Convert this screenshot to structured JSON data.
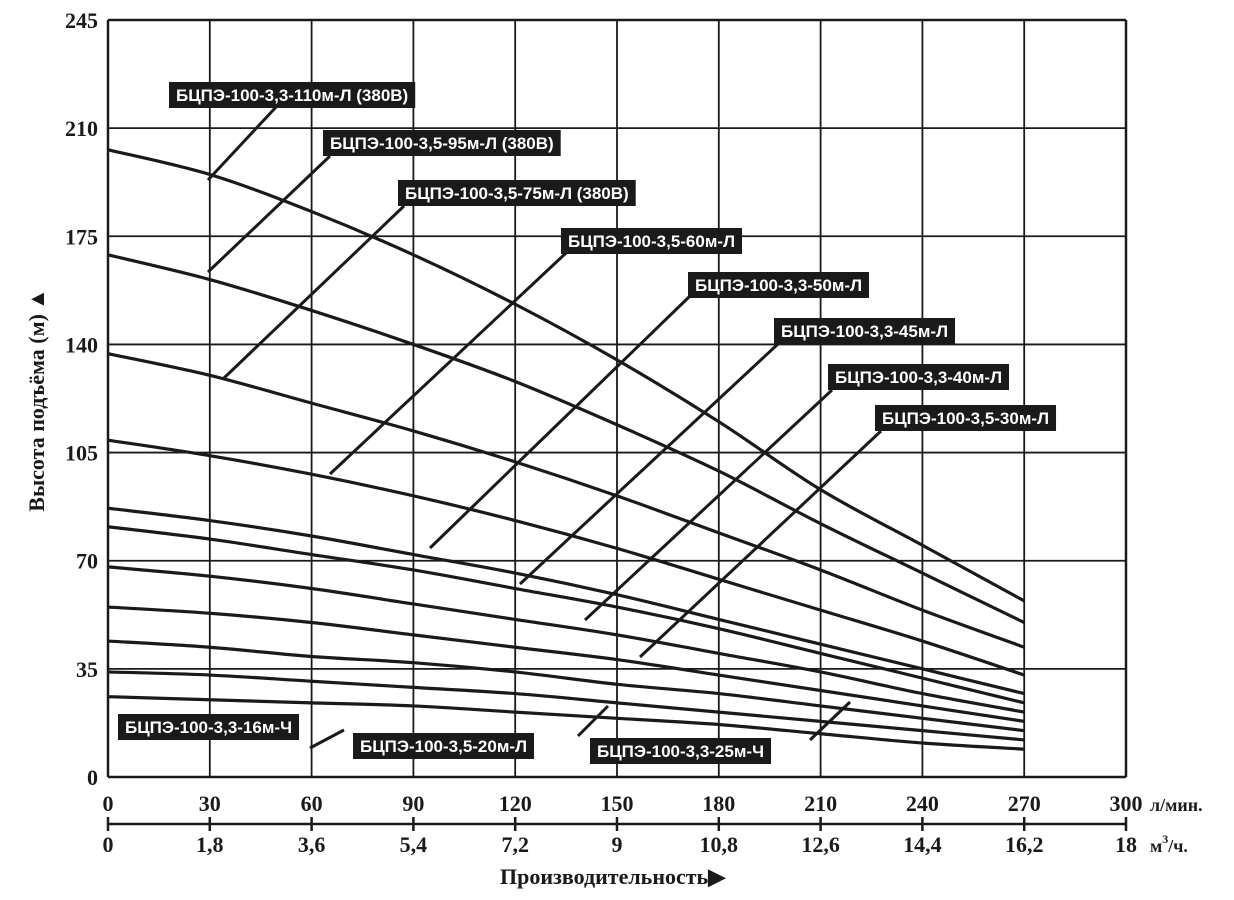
{
  "chart_data": {
    "type": "line",
    "title": "",
    "ylabel": "Высота подъёма (м)",
    "xlabel": "Производительность",
    "x_unit_primary": "л/мин.",
    "x_unit_secondary_base": "м",
    "x_unit_secondary_sup": "3",
    "x_unit_secondary_tail": "/ч.",
    "xlim": [
      0,
      300
    ],
    "ylim": [
      0,
      245
    ],
    "grid": true,
    "x_ticks": [
      "0",
      "30",
      "60",
      "90",
      "120",
      "150",
      "180",
      "210",
      "240",
      "270",
      "300"
    ],
    "x_ticks_secondary": [
      "0",
      "1,8",
      "3,6",
      "5,4",
      "7,2",
      "9",
      "10,8",
      "12,6",
      "14,4",
      "16,2",
      "18"
    ],
    "y_ticks": [
      "0",
      "35",
      "70",
      "105",
      "140",
      "175",
      "210",
      "245"
    ],
    "x": [
      0,
      30,
      60,
      90,
      120,
      150,
      180,
      210,
      240,
      270
    ],
    "series": [
      {
        "name": "БЦПЭ-100-3,3-110м-Л (380В)",
        "values": [
          203,
          195,
          183,
          169,
          153,
          135,
          115,
          93,
          75,
          57
        ]
      },
      {
        "name": "БЦПЭ-100-3,5-95м-Л (380В)",
        "values": [
          169,
          161,
          151,
          140,
          128,
          114,
          99,
          82,
          66,
          50
        ]
      },
      {
        "name": "БЦПЭ-100-3,5-75м-Л (380В)",
        "values": [
          137,
          130,
          121,
          112,
          102,
          91,
          79,
          67,
          54,
          42
        ]
      },
      {
        "name": "БЦПЭ-100-3,5-60м-Л",
        "values": [
          109,
          104,
          98,
          91,
          83,
          74,
          64,
          54,
          44,
          33
        ]
      },
      {
        "name": "БЦПЭ-100-3,3-50м-Л",
        "values": [
          87,
          83,
          78,
          72,
          66,
          59,
          51,
          43,
          35,
          27
        ]
      },
      {
        "name": "БЦПЭ-100-3,3-45м-Л",
        "values": [
          81,
          77,
          72,
          67,
          61,
          55,
          48,
          40,
          32,
          24
        ]
      },
      {
        "name": "БЦПЭ-100-3,3-40м-Л",
        "values": [
          68,
          65,
          61,
          56,
          51,
          46,
          40,
          34,
          27,
          21
        ]
      },
      {
        "name": "БЦПЭ-100-3,5-30м-Л",
        "values": [
          55,
          53,
          50,
          46,
          42,
          38,
          33,
          28,
          23,
          18
        ]
      },
      {
        "name": "БЦПЭ-100-3,3-25м-Ч",
        "values": [
          44,
          42,
          39,
          37,
          34,
          30,
          27,
          23,
          19,
          15
        ]
      },
      {
        "name": "БЦПЭ-100-3,5-20м-Л",
        "values": [
          34,
          33,
          31,
          29,
          27,
          24,
          21,
          18,
          15,
          12
        ]
      },
      {
        "name": "БЦПЭ-100-3,3-16м-Ч",
        "values": [
          26,
          25,
          24,
          23,
          21,
          19,
          17,
          14,
          11,
          9
        ]
      }
    ],
    "curve_color": "#1a1a1a",
    "label_background": "#1a1a1a",
    "label_text_color": "#ffffff",
    "grid_color": "#1a1a1a"
  }
}
